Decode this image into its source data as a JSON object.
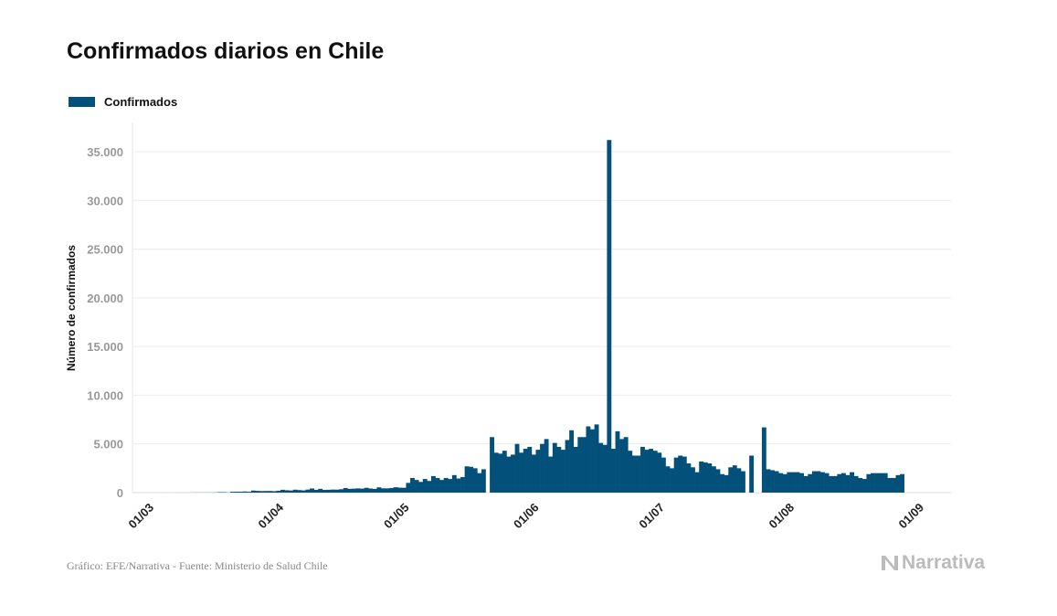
{
  "chart_data": {
    "type": "bar",
    "title": "Confirmados diarios en Chile",
    "ylabel": "Número de confirmados",
    "xlabel": "",
    "legend": [
      {
        "name": "Confirmados",
        "color": "#03507a"
      }
    ],
    "legend_position": "top-left",
    "grid": true,
    "ylim": [
      0,
      37000
    ],
    "yticks": [
      0,
      5000,
      10000,
      15000,
      20000,
      25000,
      30000,
      35000
    ],
    "ytick_labels": [
      "0",
      "5.000",
      "10.000",
      "15.000",
      "20.000",
      "25.000",
      "30.000",
      "35.000"
    ],
    "xtick_labels": [
      "01/03",
      "01/04",
      "01/05",
      "01/06",
      "01/07",
      "01/08",
      "01/09"
    ],
    "xtick_day_offsets": [
      0,
      31,
      61,
      92,
      122,
      153,
      184
    ],
    "x_start": "01/03",
    "x_span_days": 184,
    "series": [
      {
        "name": "Confirmados",
        "values": [
          0,
          0,
          1,
          2,
          1,
          0,
          3,
          3,
          2,
          4,
          10,
          10,
          10,
          14,
          13,
          20,
          46,
          45,
          18,
          86,
          97,
          96,
          114,
          88,
          210,
          177,
          156,
          164,
          167,
          145,
          195,
          293,
          242,
          220,
          301,
          259,
          228,
          310,
          426,
          286,
          385,
          278,
          293,
          313,
          304,
          347,
          471,
          391,
          408,
          434,
          411,
          494,
          421,
          381,
          541,
          439,
          435,
          473,
          552,
          509,
          498,
          1000,
          1500,
          1300,
          1100,
          1400,
          1200,
          1700,
          1500,
          1300,
          1500,
          1400,
          1800,
          1450,
          1600,
          2700,
          2650,
          2500,
          2000,
          2400,
          0,
          5700,
          4100,
          4000,
          4300,
          3700,
          3900,
          5000,
          4100,
          4500,
          4700,
          3900,
          4400,
          5000,
          5500,
          3700,
          5100,
          4700,
          4400,
          5400,
          6400,
          4700,
          5700,
          5700,
          6800,
          6500,
          7000,
          5100,
          4900,
          36200,
          4500,
          6300,
          5500,
          5700,
          4300,
          3800,
          3800,
          4700,
          4400,
          4500,
          4300,
          4100,
          3600,
          2700,
          2500,
          3600,
          3800,
          3700,
          3000,
          2600,
          2100,
          3200,
          3100,
          3000,
          2700,
          2400,
          1900,
          1800,
          2600,
          2800,
          2500,
          2200,
          0,
          3800,
          0,
          0,
          6700,
          2400,
          2300,
          2200,
          2000,
          1900,
          2100,
          2100,
          2100,
          2000,
          1700,
          1900,
          2200,
          2200,
          2100,
          2000,
          1700,
          1700,
          1900,
          2000,
          1800,
          2100,
          1700,
          1500,
          1400,
          1900,
          2000,
          2000,
          2000,
          2000,
          1500,
          1500,
          1800,
          1900
        ]
      }
    ]
  },
  "footer": {
    "source": "Gráfico: EFE/Narrativa - Fuente: Ministerio de Salud Chile",
    "logo": "Narrativa"
  }
}
